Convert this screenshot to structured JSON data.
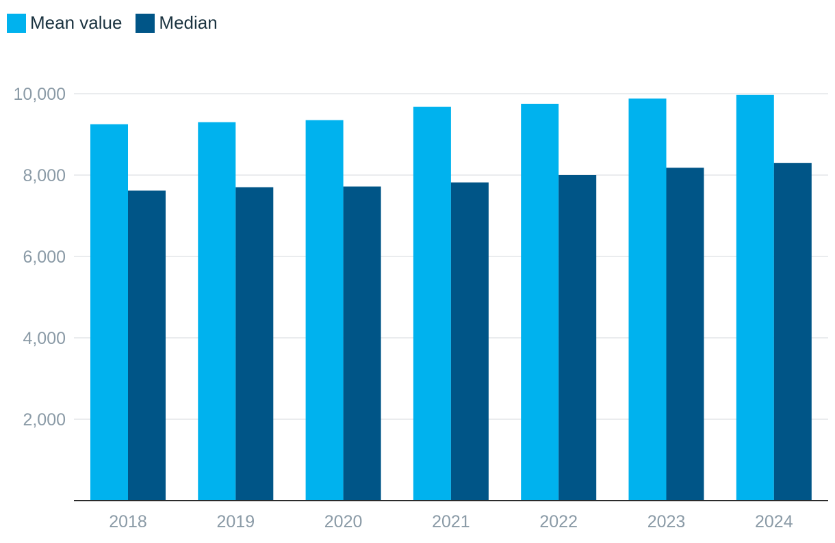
{
  "legend": [
    {
      "label": "Mean value",
      "color": "#00b2ee"
    },
    {
      "label": "Median",
      "color": "#005587"
    }
  ],
  "chart_data": {
    "type": "bar",
    "categories": [
      "2018",
      "2019",
      "2020",
      "2021",
      "2022",
      "2023",
      "2024"
    ],
    "series": [
      {
        "name": "Mean value",
        "values": [
          9250,
          9300,
          9350,
          9680,
          9750,
          9880,
          9970
        ],
        "color": "#00b2ee"
      },
      {
        "name": "Median",
        "values": [
          7620,
          7700,
          7720,
          7820,
          8000,
          8180,
          8300
        ],
        "color": "#005587"
      }
    ],
    "ylim": [
      0,
      10000
    ],
    "yticks": [
      2000,
      4000,
      6000,
      8000,
      10000
    ],
    "ytick_labels": [
      "2,000",
      "4,000",
      "6,000",
      "8,000",
      "10,000"
    ],
    "grid": true,
    "legend_position": "top-left",
    "xlabel": "",
    "ylabel": ""
  }
}
